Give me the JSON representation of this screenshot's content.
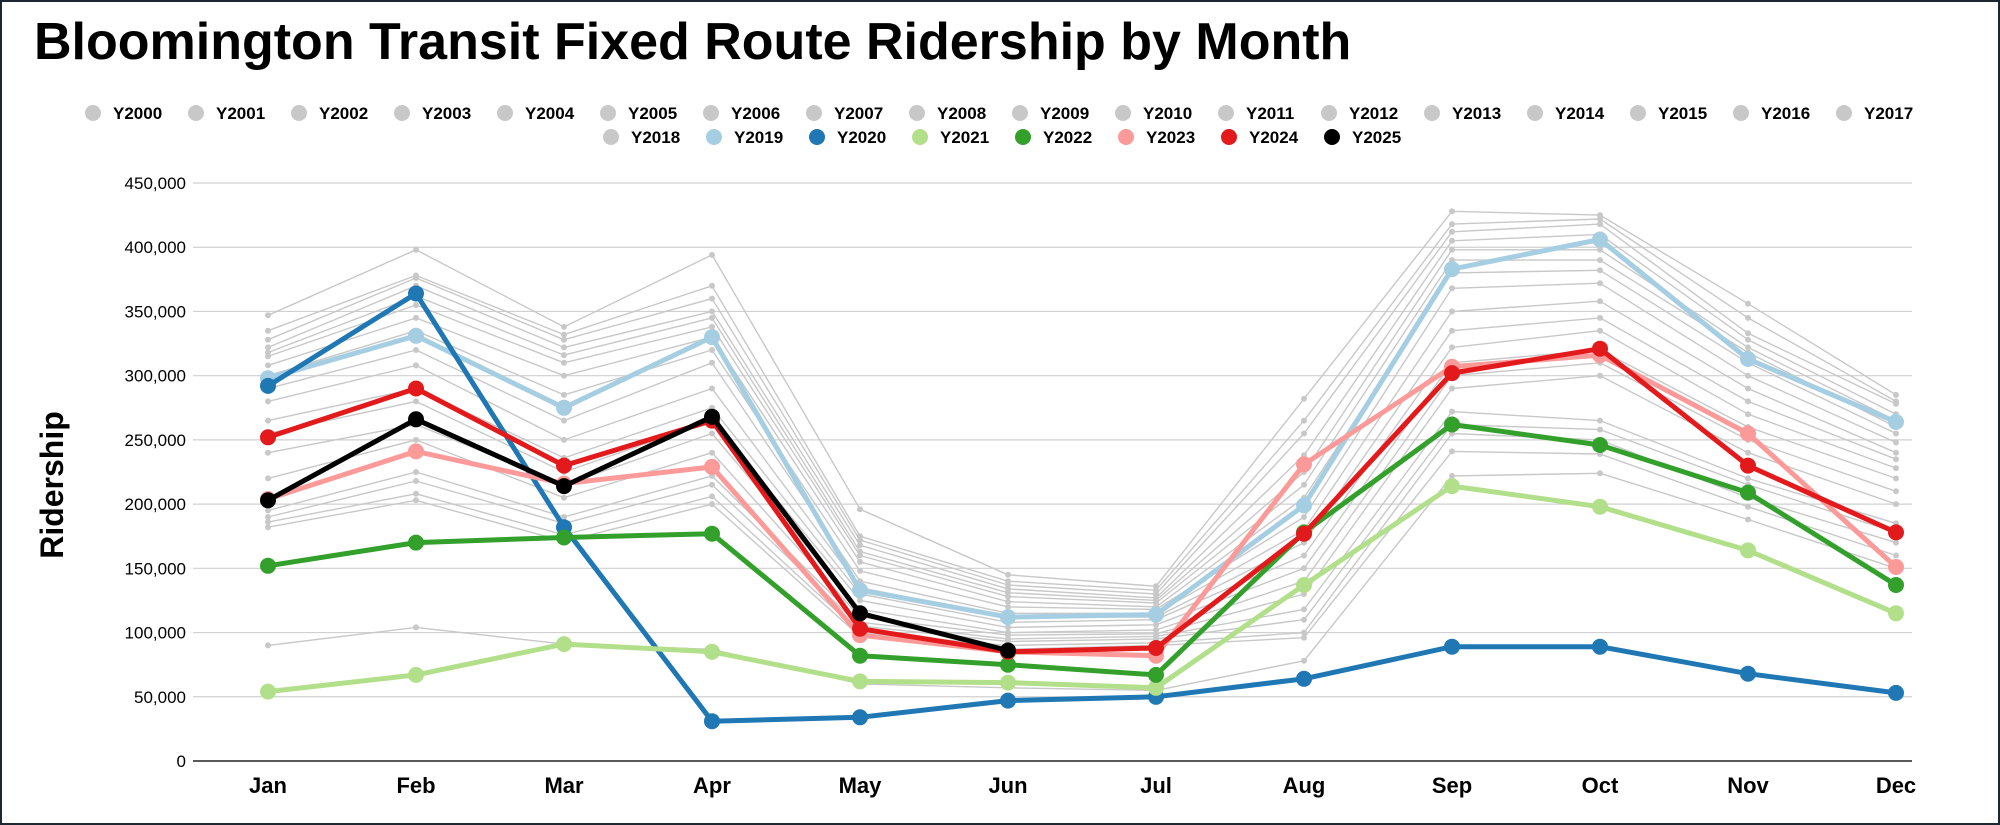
{
  "chart_data": {
    "type": "line",
    "title": "Bloomington Transit Fixed Route Ridership by Month",
    "xlabel": "",
    "ylabel": "Ridership",
    "ylim": [
      0,
      450000
    ],
    "y_ticks": [
      0,
      50000,
      100000,
      150000,
      200000,
      250000,
      300000,
      350000,
      400000,
      450000
    ],
    "y_tick_labels": [
      "0",
      "50,000",
      "100,000",
      "150,000",
      "200,000",
      "250,000",
      "300,000",
      "350,000",
      "400,000",
      "450,000"
    ],
    "grid": true,
    "legend_position": "top",
    "categories": [
      "Jan",
      "Feb",
      "Mar",
      "Apr",
      "May",
      "Jun",
      "Jul",
      "Aug",
      "Sep",
      "Oct",
      "Nov",
      "Dec"
    ],
    "series": [
      {
        "name": "Y2000",
        "color": "#c8c8c8",
        "highlight": false,
        "values": [
          90000,
          104000,
          91000,
          87000,
          60000,
          57000,
          55000,
          78000,
          222000,
          224000,
          188000,
          150000
        ]
      },
      {
        "name": "Y2001",
        "color": "#c8c8c8",
        "highlight": false,
        "values": [
          182000,
          203000,
          171000,
          200000,
          97000,
          87000,
          90000,
          96000,
          241000,
          239000,
          198000,
          160000
        ]
      },
      {
        "name": "Y2002",
        "color": "#c8c8c8",
        "highlight": false,
        "values": [
          186000,
          208000,
          176000,
          206000,
          100000,
          90000,
          92000,
          100000,
          255000,
          250000,
          205000,
          170000
        ]
      },
      {
        "name": "Y2003",
        "color": "#c8c8c8",
        "highlight": false,
        "values": [
          190000,
          218000,
          185000,
          215000,
          105000,
          93000,
          95000,
          110000,
          262000,
          258000,
          215000,
          178000
        ]
      },
      {
        "name": "Y2004",
        "color": "#c8c8c8",
        "highlight": false,
        "values": [
          195000,
          225000,
          190000,
          222000,
          108000,
          95000,
          97000,
          118000,
          272000,
          265000,
          220000,
          185000
        ]
      },
      {
        "name": "Y2005",
        "color": "#c8c8c8",
        "highlight": false,
        "values": [
          220000,
          250000,
          205000,
          240000,
          112000,
          98000,
          99000,
          130000,
          290000,
          300000,
          240000,
          200000
        ]
      },
      {
        "name": "Y2006",
        "color": "#c8c8c8",
        "highlight": false,
        "values": [
          240000,
          262000,
          215000,
          255000,
          118000,
          100000,
          102000,
          140000,
          300000,
          310000,
          250000,
          210000
        ]
      },
      {
        "name": "Y2007",
        "color": "#c8c8c8",
        "highlight": false,
        "values": [
          255000,
          280000,
          225000,
          265000,
          125000,
          104000,
          106000,
          150000,
          310000,
          320000,
          260000,
          220000
        ]
      },
      {
        "name": "Y2008",
        "color": "#c8c8c8",
        "highlight": false,
        "values": [
          265000,
          290000,
          236000,
          275000,
          130000,
          108000,
          110000,
          160000,
          322000,
          335000,
          270000,
          228000
        ]
      },
      {
        "name": "Y2009",
        "color": "#c8c8c8",
        "highlight": false,
        "values": [
          280000,
          308000,
          250000,
          290000,
          135000,
          112000,
          112000,
          170000,
          335000,
          345000,
          280000,
          235000
        ]
      },
      {
        "name": "Y2010",
        "color": "#c8c8c8",
        "highlight": false,
        "values": [
          290000,
          320000,
          265000,
          310000,
          140000,
          115000,
          115000,
          180000,
          350000,
          358000,
          290000,
          240000
        ]
      },
      {
        "name": "Y2011",
        "color": "#c8c8c8",
        "highlight": false,
        "values": [
          300000,
          335000,
          285000,
          320000,
          148000,
          120000,
          118000,
          190000,
          368000,
          372000,
          300000,
          248000
        ]
      },
      {
        "name": "Y2012",
        "color": "#c8c8c8",
        "highlight": false,
        "values": [
          308000,
          345000,
          300000,
          330000,
          155000,
          124000,
          120000,
          205000,
          380000,
          382000,
          310000,
          255000
        ]
      },
      {
        "name": "Y2013",
        "color": "#c8c8c8",
        "highlight": false,
        "values": [
          315000,
          355000,
          310000,
          338000,
          160000,
          128000,
          123000,
          215000,
          390000,
          390000,
          318000,
          260000
        ]
      },
      {
        "name": "Y2014",
        "color": "#c8c8c8",
        "highlight": false,
        "values": [
          318000,
          362000,
          316000,
          345000,
          163000,
          131000,
          125000,
          225000,
          398000,
          398000,
          322000,
          265000
        ]
      },
      {
        "name": "Y2015",
        "color": "#c8c8c8",
        "highlight": false,
        "values": [
          322000,
          370000,
          322000,
          350000,
          168000,
          134000,
          127000,
          238000,
          405000,
          410000,
          328000,
          270000
        ]
      },
      {
        "name": "Y2016",
        "color": "#c8c8c8",
        "highlight": false,
        "values": [
          328000,
          376000,
          328000,
          360000,
          172000,
          137000,
          130000,
          255000,
          412000,
          418000,
          333000,
          278000
        ]
      },
      {
        "name": "Y2017",
        "color": "#c8c8c8",
        "highlight": false,
        "values": [
          335000,
          378000,
          332000,
          370000,
          175000,
          140000,
          133000,
          265000,
          418000,
          422000,
          345000,
          280000
        ]
      },
      {
        "name": "Y2018",
        "color": "#c8c8c8",
        "highlight": false,
        "values": [
          347000,
          398000,
          338000,
          394000,
          196000,
          145000,
          136000,
          282000,
          428000,
          425000,
          356000,
          285000
        ]
      },
      {
        "name": "Y2019",
        "color": "#a6cee3",
        "highlight": true,
        "values": [
          298000,
          331000,
          275000,
          330000,
          133000,
          112000,
          114000,
          199000,
          383000,
          406000,
          313000,
          264000
        ]
      },
      {
        "name": "Y2020",
        "color": "#1f78b4",
        "highlight": true,
        "values": [
          292000,
          364000,
          182000,
          31000,
          34000,
          47000,
          50000,
          64000,
          89000,
          89000,
          68000,
          53000
        ]
      },
      {
        "name": "Y2021",
        "color": "#b2df8a",
        "highlight": true,
        "values": [
          54000,
          67000,
          91000,
          85000,
          62000,
          61000,
          57000,
          137000,
          214000,
          198000,
          164000,
          115000
        ]
      },
      {
        "name": "Y2022",
        "color": "#33a02c",
        "highlight": true,
        "values": [
          152000,
          170000,
          174000,
          177000,
          82000,
          75000,
          67000,
          178000,
          262000,
          246000,
          209000,
          137000
        ]
      },
      {
        "name": "Y2023",
        "color": "#fb9a99",
        "highlight": true,
        "values": [
          204000,
          241000,
          216000,
          229000,
          98000,
          85000,
          82000,
          231000,
          307000,
          316000,
          255000,
          151000
        ]
      },
      {
        "name": "Y2024",
        "color": "#e31a1c",
        "highlight": true,
        "values": [
          252000,
          290000,
          230000,
          265000,
          103000,
          85000,
          88000,
          177000,
          302000,
          321000,
          230000,
          178000
        ]
      },
      {
        "name": "Y2025",
        "color": "#000000",
        "highlight": true,
        "values": [
          203000,
          266000,
          214000,
          268000,
          115000,
          86000,
          null,
          null,
          null,
          null,
          null,
          null
        ]
      }
    ]
  }
}
